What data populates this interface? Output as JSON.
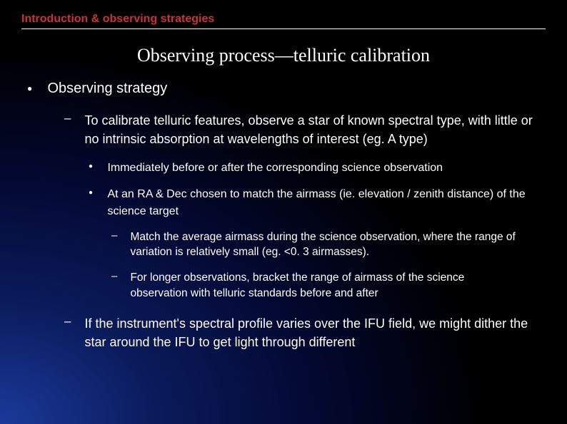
{
  "header": {
    "breadcrumb": "Introduction & observing strategies"
  },
  "title": "Observing process—telluric calibration",
  "colors": {
    "breadcrumb": "#cc3333",
    "text": "#ffffff",
    "bg_gradient_inner": "#1a3a9a",
    "bg_gradient_outer": "#000000"
  },
  "bullets": {
    "l1_0": "Observing strategy",
    "l2_0": "To calibrate telluric features, observe a star of known spectral type, with little or no intrinsic absorption at wavelengths of interest (eg. A type)",
    "l3_0": "Immediately before or after the corresponding science observation",
    "l3_1": "At an RA & Dec chosen to match the airmass (ie. elevation / zenith distance) of the science target",
    "l4_0": "Match the average airmass during the science observation, where the range of variation is relatively small (eg. <0. 3 airmasses).",
    "l4_1": "For longer observations, bracket the range of airmass of the science observation with telluric standards before and after",
    "l2_1": "If the instrument's spectral profile varies over the IFU field, we might dither the star around the IFU to get light through different"
  }
}
